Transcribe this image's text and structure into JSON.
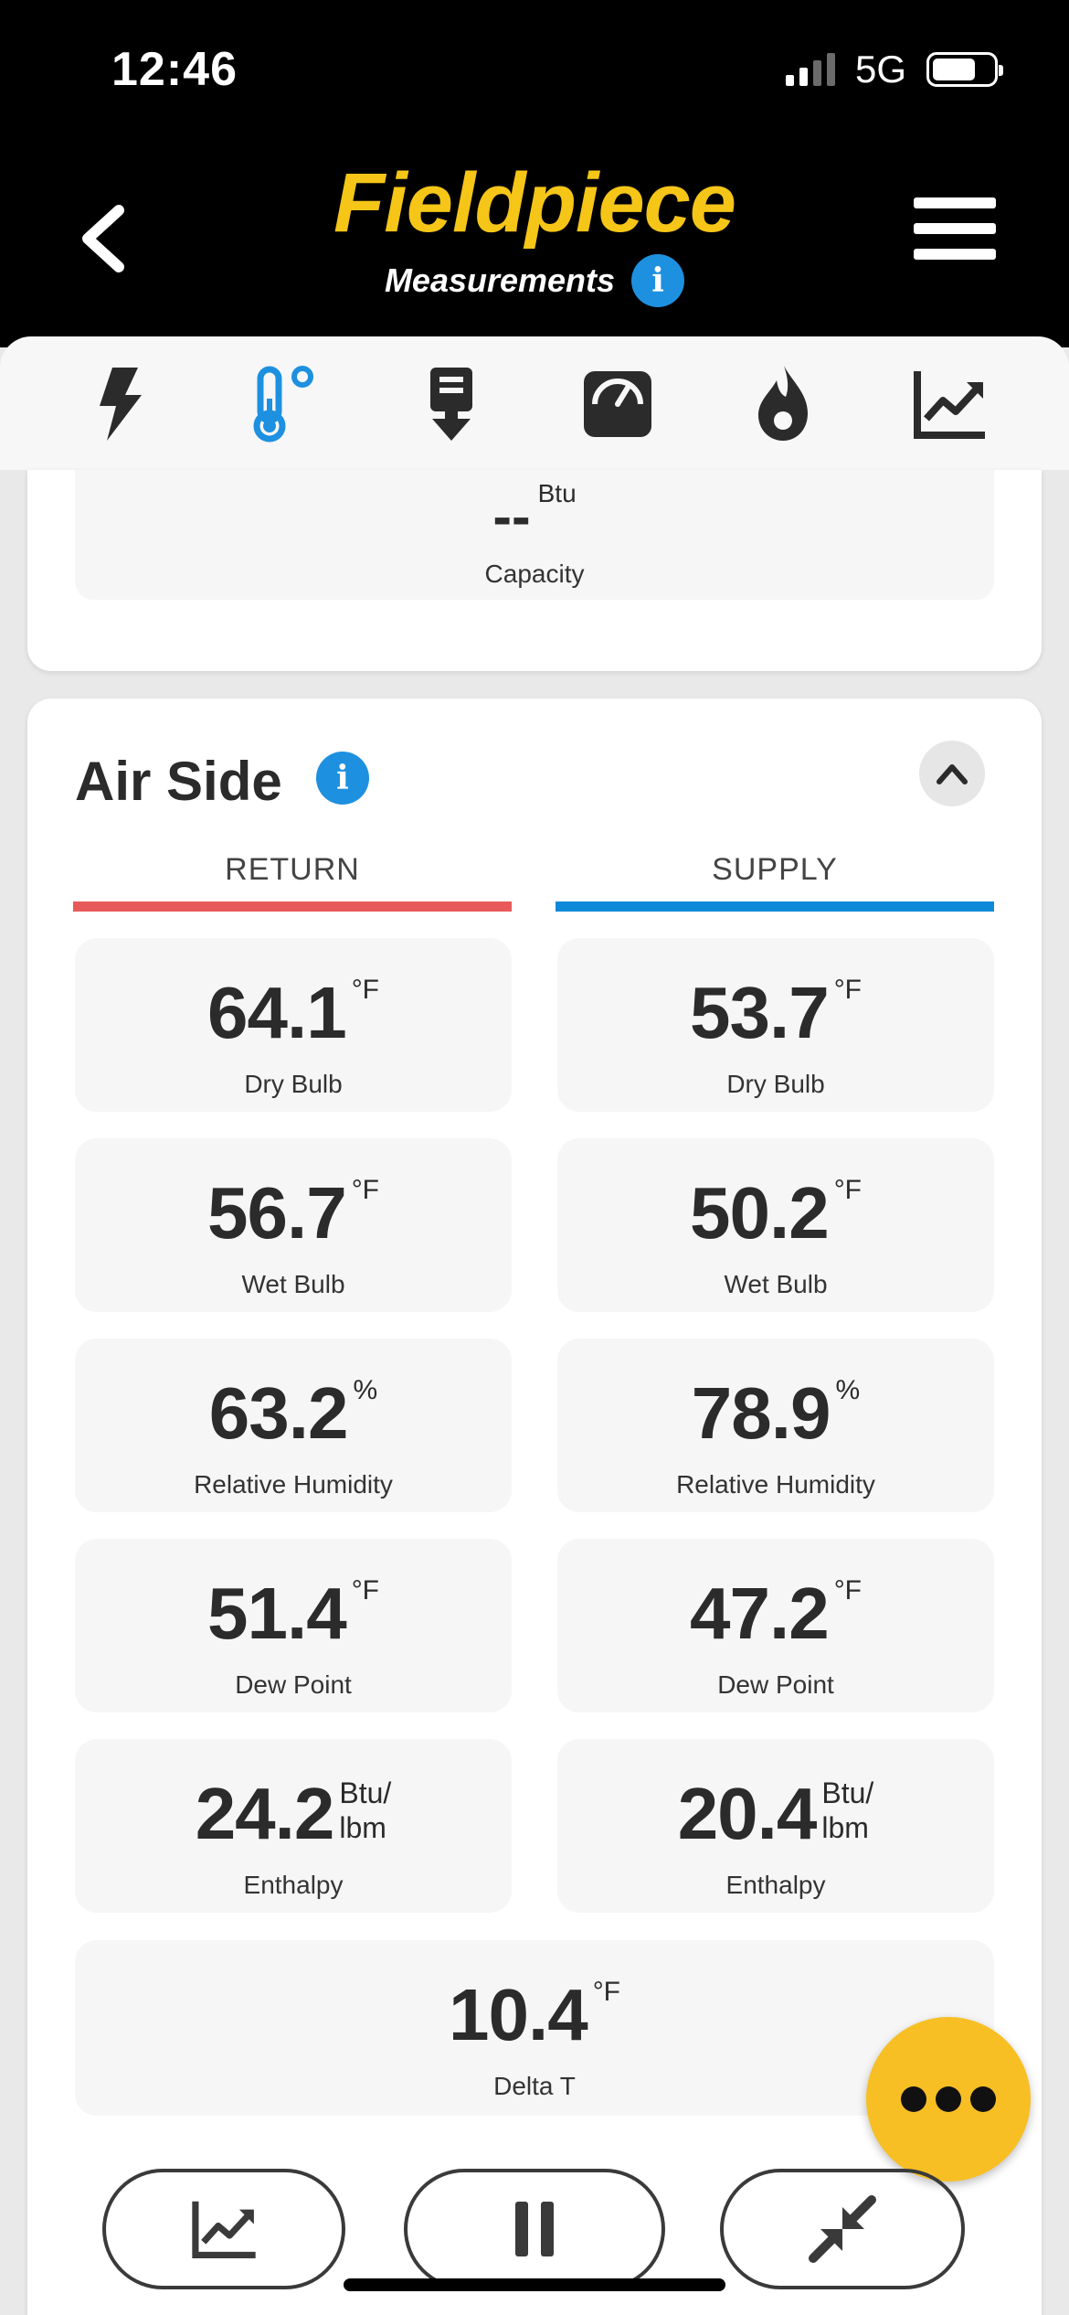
{
  "status_bar": {
    "time": "12:46",
    "network": "5G"
  },
  "header": {
    "logo": "Fieldpiece",
    "subtitle": "Measurements"
  },
  "tabs": [
    {
      "name": "electrical",
      "icon": "lightning-icon",
      "active": false
    },
    {
      "name": "temperature",
      "icon": "thermometer-icon",
      "active": true
    },
    {
      "name": "airflow",
      "icon": "probe-icon",
      "active": false
    },
    {
      "name": "pressure",
      "icon": "gauge-icon",
      "active": false
    },
    {
      "name": "combustion",
      "icon": "flame-icon",
      "active": false
    },
    {
      "name": "graph",
      "icon": "chart-icon",
      "active": false
    }
  ],
  "capacity": {
    "value": "--",
    "unit": "Btu",
    "label": "Capacity"
  },
  "air_side": {
    "title": "Air Side",
    "return_label": "RETURN",
    "supply_label": "SUPPLY",
    "return": [
      {
        "value": "64.1",
        "unit": "°F",
        "label": "Dry Bulb"
      },
      {
        "value": "56.7",
        "unit": "°F",
        "label": "Wet Bulb"
      },
      {
        "value": "63.2",
        "unit": "%",
        "label": "Relative Humidity"
      },
      {
        "value": "51.4",
        "unit": "°F",
        "label": "Dew Point"
      },
      {
        "value": "24.2",
        "unit_line1": "Btu/",
        "unit_line2": "lbm",
        "label": "Enthalpy"
      }
    ],
    "supply": [
      {
        "value": "53.7",
        "unit": "°F",
        "label": "Dry Bulb"
      },
      {
        "value": "50.2",
        "unit": "°F",
        "label": "Wet Bulb"
      },
      {
        "value": "78.9",
        "unit": "%",
        "label": "Relative Humidity"
      },
      {
        "value": "47.2",
        "unit": "°F",
        "label": "Dew Point"
      },
      {
        "value": "20.4",
        "unit_line1": "Btu/",
        "unit_line2": "lbm",
        "label": "Enthalpy"
      }
    ],
    "delta_t": {
      "value": "10.4",
      "unit": "°F",
      "label": "Delta T"
    }
  },
  "colors": {
    "brand_yellow": "#f5c518",
    "info_blue": "#1e90e0",
    "return_red": "#e85a5a",
    "supply_blue": "#0f8ad8",
    "fab_yellow": "#f7bf24"
  }
}
